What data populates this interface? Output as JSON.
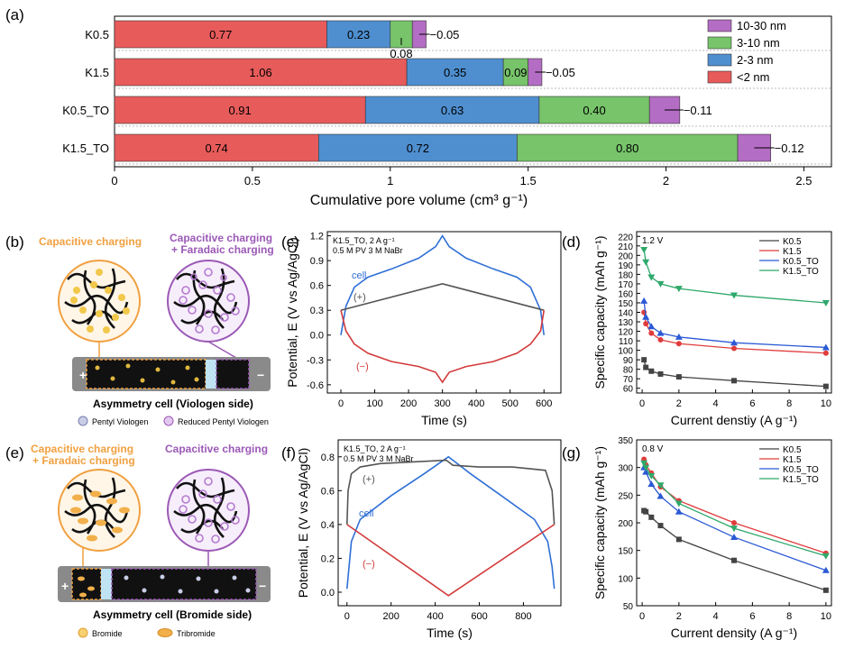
{
  "panel_labels": [
    "(a)",
    "(b)",
    "(c)",
    "(d)",
    "(e)",
    "(f)",
    "(g)"
  ],
  "colors": {
    "lt2": "#e85b5b",
    "r23": "#4f8fd0",
    "r310": "#77c46a",
    "r1030": "#b46dc4",
    "k05": "#444444",
    "k15": "#e03c3c",
    "k05to": "#2a59d4",
    "k15to": "#2ea86a",
    "cellBlue": "#2f6fd6",
    "posGray": "#555555",
    "negRed": "#d23a3a",
    "orange": "#f0a040",
    "purple": "#9b59b6"
  },
  "chart_data": [
    {
      "id": "a",
      "type": "bar",
      "orientation": "horizontal",
      "stacked": true,
      "categories": [
        "K0.5",
        "K1.5",
        "K0.5_TO",
        "K1.5_TO"
      ],
      "series": [
        {
          "name": "<2 nm",
          "values": [
            0.77,
            1.06,
            0.91,
            0.74
          ],
          "labels": [
            "0.77",
            "1.06",
            "0.91",
            "0.74"
          ]
        },
        {
          "name": "2-3 nm",
          "values": [
            0.23,
            0.35,
            0.63,
            0.72
          ],
          "labels": [
            "0.23",
            "0.35",
            "0.63",
            "0.72"
          ]
        },
        {
          "name": "3-10 nm",
          "values": [
            0.08,
            0.09,
            0.4,
            0.8
          ],
          "labels": [
            "0.08",
            "0.09",
            "0.40",
            "0.80"
          ]
        },
        {
          "name": "10-30 nm",
          "values": [
            0.05,
            0.05,
            0.11,
            0.12
          ],
          "labels": [
            "0.05",
            "0.05",
            "0.11",
            "0.12"
          ]
        }
      ],
      "legend_order": [
        "10-30 nm",
        "3-10 nm",
        "2-3 nm",
        "<2 nm"
      ],
      "xlim": [
        0,
        2.6
      ],
      "xticks": [
        "0",
        "0.5",
        "1",
        "1.5",
        "2",
        "2.5"
      ],
      "xtick_values": [
        0,
        0.5,
        1,
        1.5,
        2,
        2.5
      ],
      "xlabel": "Cumulative pore volume (cm³ g⁻¹)",
      "legend_position": "top-right"
    },
    {
      "id": "c",
      "type": "line",
      "annotation": [
        "K1.5_TO, 2 A g⁻¹",
        "0.5 M PV 3 M NaBr"
      ],
      "xlabel": "Time (s)",
      "ylabel": "Potential, E (V vs Ag/AgCl)",
      "xlim": [
        -40,
        650
      ],
      "ylim": [
        -0.7,
        1.25
      ],
      "xticks": [
        "0",
        "100",
        "200",
        "300",
        "400",
        "500",
        "600"
      ],
      "xtick_values": [
        0,
        100,
        200,
        300,
        400,
        500,
        600
      ],
      "yticks": [
        "-0.6",
        "-0.3",
        "0.0",
        "0.3",
        "0.6",
        "0.9",
        "1.2"
      ],
      "ytick_values": [
        -0.6,
        -0.3,
        0,
        0.3,
        0.6,
        0.9,
        1.2
      ],
      "series": [
        {
          "name": "cell",
          "x": [
            0,
            15,
            40,
            80,
            150,
            230,
            280,
            300,
            320,
            370,
            450,
            520,
            560,
            590,
            600
          ],
          "y": [
            0.0,
            0.35,
            0.58,
            0.7,
            0.8,
            0.93,
            1.07,
            1.2,
            1.07,
            0.93,
            0.8,
            0.7,
            0.58,
            0.3,
            0.0
          ]
        },
        {
          "name": "(+)",
          "x": [
            0,
            300,
            600
          ],
          "y": [
            0.3,
            0.62,
            0.3
          ]
        },
        {
          "name": "(−)",
          "x": [
            0,
            15,
            40,
            80,
            150,
            230,
            280,
            300,
            320,
            370,
            450,
            520,
            560,
            590,
            600
          ],
          "y": [
            0.3,
            0.05,
            -0.11,
            -0.22,
            -0.32,
            -0.38,
            -0.45,
            -0.57,
            -0.45,
            -0.38,
            -0.32,
            -0.22,
            -0.11,
            0.05,
            0.3
          ]
        }
      ],
      "series_labels": [
        "cell",
        "(+)",
        "(−)"
      ]
    },
    {
      "id": "d",
      "type": "line",
      "annotation": "1.2 V",
      "xlabel": "Current denstiy (A g⁻¹)",
      "ylabel": "Specific capacity (mAh g⁻¹)",
      "xlim": [
        -0.3,
        10.3
      ],
      "ylim": [
        55,
        225
      ],
      "xticks": [
        "0",
        "2",
        "4",
        "6",
        "8",
        "10"
      ],
      "xtick_values": [
        0,
        2,
        4,
        6,
        8,
        10
      ],
      "yticks": [
        "60",
        "70",
        "80",
        "90",
        "100",
        "110",
        "120",
        "130",
        "140",
        "150",
        "160",
        "170",
        "180",
        "190",
        "200",
        "210",
        "220"
      ],
      "ytick_values": [
        60,
        70,
        80,
        90,
        100,
        110,
        120,
        130,
        140,
        150,
        160,
        170,
        180,
        190,
        200,
        210,
        220
      ],
      "x": [
        0.1,
        0.2,
        0.5,
        1,
        2,
        5,
        10
      ],
      "series": [
        {
          "name": "K0.5",
          "values": [
            90,
            82,
            78,
            75,
            72,
            68,
            62
          ]
        },
        {
          "name": "K1.5",
          "values": [
            140,
            128,
            118,
            111,
            107,
            102,
            97
          ]
        },
        {
          "name": "K0.5_TO",
          "values": [
            152,
            135,
            125,
            118,
            114,
            108,
            103
          ]
        },
        {
          "name": "K1.5_TO",
          "values": [
            206,
            193,
            177,
            170,
            165,
            158,
            150
          ]
        }
      ],
      "legend_position": "top-right"
    },
    {
      "id": "f",
      "type": "line",
      "annotation": [
        "K1.5_TO, 2 A g⁻¹",
        "0.5 M PV 3 M NaBr"
      ],
      "xlabel": "Time (s)",
      "ylabel": "Potential, E (V vs Ag/AgCl)",
      "xlim": [
        -40,
        970
      ],
      "ylim": [
        -0.08,
        0.9
      ],
      "xticks": [
        "0",
        "200",
        "400",
        "600",
        "800"
      ],
      "xtick_values": [
        0,
        200,
        400,
        600,
        800
      ],
      "yticks": [
        "0.0",
        "0.2",
        "0.4",
        "0.6",
        "0.8"
      ],
      "ytick_values": [
        0,
        0.2,
        0.4,
        0.6,
        0.8
      ],
      "series": [
        {
          "name": "cell",
          "x": [
            0,
            20,
            60,
            200,
            350,
            460,
            560,
            700,
            850,
            910,
            930,
            940
          ],
          "y": [
            0.02,
            0.3,
            0.43,
            0.57,
            0.7,
            0.8,
            0.7,
            0.57,
            0.43,
            0.3,
            0.15,
            0.02
          ]
        },
        {
          "name": "(+)",
          "x": [
            0,
            5,
            20,
            60,
            150,
            300,
            450,
            460,
            480,
            600,
            750,
            900,
            930,
            940
          ],
          "y": [
            0.4,
            0.6,
            0.7,
            0.74,
            0.76,
            0.77,
            0.78,
            0.77,
            0.75,
            0.74,
            0.74,
            0.72,
            0.6,
            0.4
          ]
        },
        {
          "name": "(−)",
          "x": [
            0,
            460,
            940
          ],
          "y": [
            0.4,
            -0.02,
            0.4
          ]
        }
      ],
      "series_labels": [
        "cell",
        "(+)",
        "(−)"
      ]
    },
    {
      "id": "g",
      "type": "line",
      "annotation": "0.8 V",
      "xlabel": "Current density (A g⁻¹)",
      "ylabel": "Specific capacity (mAh g⁻¹)",
      "xlim": [
        -0.3,
        10.3
      ],
      "ylim": [
        50,
        350
      ],
      "xticks": [
        "0",
        "2",
        "4",
        "6",
        "8",
        "10"
      ],
      "xtick_values": [
        0,
        2,
        4,
        6,
        8,
        10
      ],
      "yticks": [
        "50",
        "100",
        "150",
        "200",
        "250",
        "300",
        "350"
      ],
      "ytick_values": [
        50,
        100,
        150,
        200,
        250,
        300,
        350
      ],
      "x": [
        0.1,
        0.2,
        0.5,
        1,
        2,
        5,
        10
      ],
      "series": [
        {
          "name": "K0.5",
          "values": [
            222,
            220,
            210,
            195,
            170,
            132,
            78
          ]
        },
        {
          "name": "K1.5",
          "values": [
            315,
            305,
            290,
            265,
            240,
            200,
            145
          ]
        },
        {
          "name": "K0.5_TO",
          "values": [
            300,
            292,
            270,
            248,
            220,
            174,
            114
          ]
        },
        {
          "name": "K1.5_TO",
          "values": [
            308,
            300,
            285,
            268,
            235,
            190,
            140
          ]
        }
      ],
      "legend_position": "top-right"
    }
  ],
  "diagram_b": {
    "title_left": "Capacitive charging",
    "title_right_1": "Capacitive charging",
    "title_right_2": "+ Faradaic charging",
    "caption": "Asymmetry cell (Viologen side)",
    "legend_1": "Pentyl Viologen",
    "legend_2": "Reduced Pentyl Viologen",
    "plus": "+",
    "minus": "−"
  },
  "diagram_e": {
    "title_left_1": "Capacitive charging",
    "title_left_2": "+ Faradaic charging",
    "title_right": "Capacitive charging",
    "caption": "Asymmetry cell (Bromide side)",
    "legend_1": "Bromide",
    "legend_2": "Tribromide",
    "plus": "+",
    "minus": "−"
  }
}
